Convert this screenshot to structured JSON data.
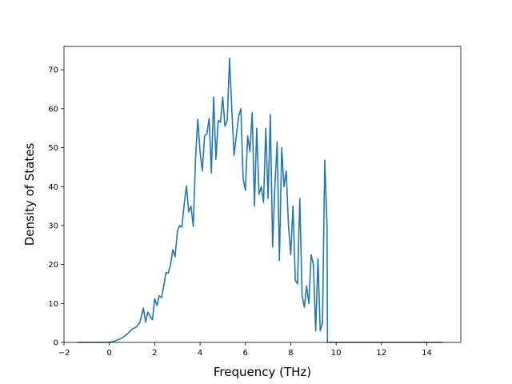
{
  "chart_data": {
    "type": "line",
    "title": "",
    "xlabel": "Frequency (THz)",
    "ylabel": "Density of States",
    "xlim": [
      -2.0,
      15.5
    ],
    "ylim": [
      0,
      76
    ],
    "xticks": [
      -2,
      0,
      2,
      4,
      6,
      8,
      10,
      12,
      14
    ],
    "yticks": [
      0,
      10,
      20,
      30,
      40,
      50,
      60,
      70
    ],
    "grid": false,
    "legend": "none",
    "series": [
      {
        "color": "#1f77b4",
        "x": [
          -1.4,
          -1.0,
          -0.5,
          0.0,
          0.2,
          0.4,
          0.6,
          0.8,
          1.0,
          1.2,
          1.35,
          1.5,
          1.6,
          1.7,
          1.8,
          1.9,
          2.0,
          2.1,
          2.2,
          2.3,
          2.4,
          2.5,
          2.6,
          2.7,
          2.8,
          2.9,
          3.0,
          3.1,
          3.2,
          3.3,
          3.4,
          3.5,
          3.6,
          3.7,
          3.8,
          3.9,
          4.0,
          4.1,
          4.2,
          4.3,
          4.4,
          4.5,
          4.6,
          4.7,
          4.8,
          4.9,
          5.0,
          5.1,
          5.2,
          5.3,
          5.4,
          5.5,
          5.6,
          5.7,
          5.8,
          5.9,
          6.0,
          6.1,
          6.2,
          6.3,
          6.4,
          6.5,
          6.6,
          6.7,
          6.8,
          6.9,
          7.0,
          7.1,
          7.2,
          7.3,
          7.4,
          7.5,
          7.6,
          7.7,
          7.8,
          7.9,
          8.0,
          8.1,
          8.2,
          8.3,
          8.4,
          8.5,
          8.6,
          8.7,
          8.8,
          8.9,
          9.0,
          9.1,
          9.2,
          9.3,
          9.4,
          9.5,
          9.6,
          9.62,
          10.0,
          12.0,
          14.0,
          14.7
        ],
        "y": [
          0,
          0,
          0,
          0,
          0.3,
          0.7,
          1.3,
          2.2,
          3.4,
          4.0,
          5.2,
          8.8,
          5.2,
          7.8,
          6.7,
          5.8,
          11.2,
          9.5,
          12.0,
          11.5,
          14.5,
          18.0,
          17.8,
          20.0,
          23.8,
          22.0,
          28.5,
          30.0,
          29.6,
          35.5,
          40.2,
          33.5,
          35.0,
          29.8,
          47.0,
          57.3,
          49.0,
          44.0,
          53.0,
          53.5,
          57.5,
          43.5,
          63.0,
          47.0,
          57.0,
          56.5,
          63.0,
          55.5,
          57.0,
          73.0,
          60.0,
          48.0,
          53.0,
          58.0,
          60.0,
          42.0,
          39.0,
          53.0,
          49.0,
          59.0,
          35.0,
          55.0,
          38.0,
          40.0,
          36.0,
          55.0,
          37.0,
          58.5,
          24.5,
          40.0,
          51.5,
          21.0,
          50.0,
          40.0,
          44.0,
          30.0,
          22.5,
          35.0,
          16.0,
          15.0,
          37.0,
          12.0,
          9.0,
          14.5,
          10.0,
          22.5,
          20.0,
          3.0,
          21.5,
          3.0,
          5.0,
          46.8,
          30.0,
          0,
          0,
          0,
          0,
          0
        ]
      }
    ]
  }
}
